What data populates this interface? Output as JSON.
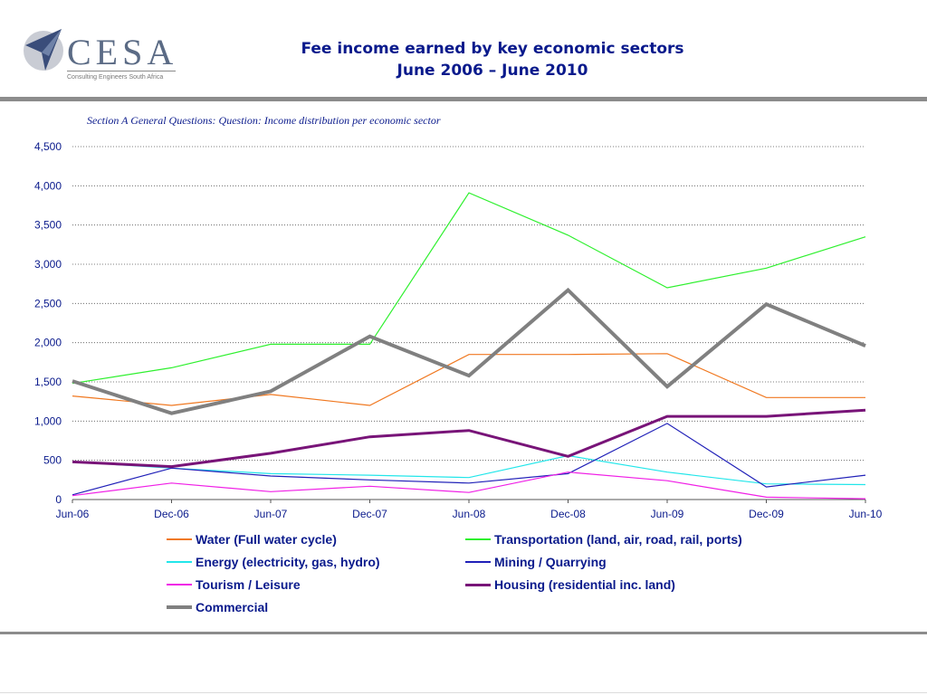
{
  "header": {
    "logo": {
      "name": "CESA",
      "tagline": "Consulting Engineers South Africa"
    },
    "title_line1": "Fee income earned by key economic sectors",
    "title_line2": "June 2006 – June 2010",
    "subtitle": "Section A General Questions: Question: Income distribution per economic sector"
  },
  "colors": {
    "title": "#0a1a8c",
    "band": "#8c8c8c"
  },
  "chart_data": {
    "type": "line",
    "title": "",
    "xlabel": "",
    "ylabel": "",
    "x": [
      "Jun-06",
      "Dec-06",
      "Jun-07",
      "Dec-07",
      "Jun-08",
      "Dec-08",
      "Jun-09",
      "Dec-09",
      "Jun-10"
    ],
    "ylim": [
      0,
      4500
    ],
    "yticks": [
      0,
      500,
      1000,
      1500,
      2000,
      2500,
      3000,
      3500,
      4000,
      4500
    ],
    "ytick_labels": [
      "0",
      "500",
      "1,000",
      "1,500",
      "2,000",
      "2,500",
      "3,000",
      "3,500",
      "4,000",
      "4,500"
    ],
    "grid": "horizontal dotted",
    "legend_position": "bottom",
    "series": [
      {
        "name": "Water (Full water cycle)",
        "color": "#f07820",
        "width": 1.2,
        "values": [
          1320,
          1200,
          1340,
          1200,
          1850,
          1850,
          1860,
          1300,
          1300
        ]
      },
      {
        "name": "Transportation (land, air, road, rail, ports)",
        "color": "#2ef02e",
        "width": 1.2,
        "values": [
          1480,
          1680,
          1980,
          1980,
          3910,
          3370,
          2700,
          2950,
          3350
        ]
      },
      {
        "name": "Energy (electricity, gas, hydro)",
        "color": "#22e6ea",
        "width": 1.2,
        "values": [
          480,
          400,
          330,
          310,
          280,
          560,
          350,
          200,
          190
        ]
      },
      {
        "name": "Mining / Quarrying",
        "color": "#2020b8",
        "width": 1.2,
        "values": [
          60,
          400,
          300,
          250,
          210,
          330,
          970,
          160,
          310
        ]
      },
      {
        "name": "Tourism / Leisure",
        "color": "#f020e6",
        "width": 1.2,
        "values": [
          50,
          210,
          100,
          170,
          90,
          350,
          240,
          30,
          10
        ]
      },
      {
        "name": "Housing (residential inc. land)",
        "color": "#781478",
        "width": 3,
        "values": [
          480,
          420,
          590,
          800,
          880,
          550,
          1060,
          1060,
          1140
        ]
      },
      {
        "name": "Commercial",
        "color": "#808080",
        "width": 4,
        "values": [
          1510,
          1100,
          1380,
          2080,
          1580,
          2670,
          1440,
          2490,
          1960
        ]
      }
    ]
  }
}
